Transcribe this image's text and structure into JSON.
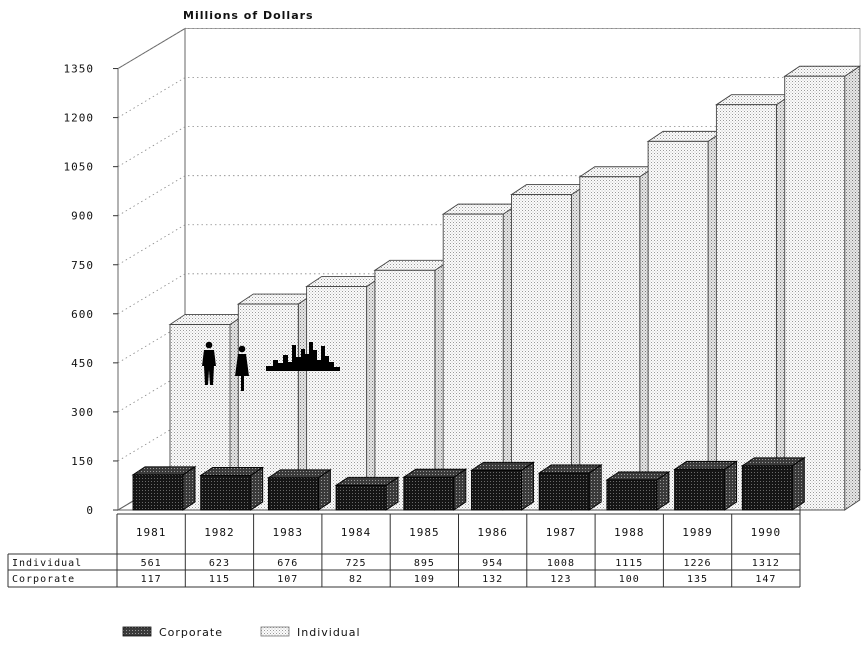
{
  "chart_data": {
    "type": "bar",
    "title": "Millions of Dollars",
    "categories": [
      "1981",
      "1982",
      "1983",
      "1984",
      "1985",
      "1986",
      "1987",
      "1988",
      "1989",
      "1990"
    ],
    "series": [
      {
        "name": "Individual",
        "values": [
          561,
          623,
          676,
          725,
          895,
          954,
          1008,
          1115,
          1226,
          1312
        ]
      },
      {
        "name": "Corporate",
        "values": [
          117,
          115,
          107,
          82,
          109,
          132,
          123,
          100,
          135,
          147
        ]
      }
    ],
    "y_ticks": [
      "0",
      "150",
      "300",
      "450",
      "600",
      "750",
      "900",
      "1050",
      "1200",
      "1350"
    ],
    "ylim": [
      0,
      1350
    ],
    "grid": true,
    "legend_position": "bottom-left",
    "table": {
      "row_labels": [
        "Individual",
        "Corporate"
      ],
      "individual": [
        "561",
        "623",
        "676",
        "725",
        "895",
        "954",
        "1008",
        "1115",
        "1226",
        "1312"
      ],
      "corporate": [
        "117",
        "115",
        "107",
        "82",
        "109",
        "132",
        "123",
        "100",
        "135",
        "147"
      ]
    },
    "colors": {
      "corporate": "#2b2b2b",
      "individual": "#f2f2f2"
    }
  },
  "legend": {
    "corporate": "Corporate",
    "individual": "Individual"
  }
}
